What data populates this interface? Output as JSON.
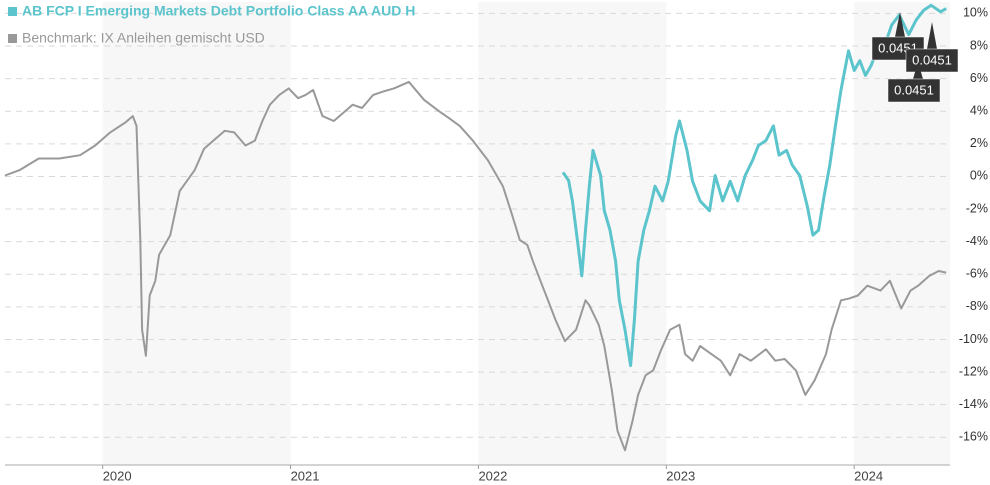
{
  "chart_data": {
    "type": "line",
    "series": [
      {
        "name": "AB FCP I Emerging Markets Debt Portfolio Class AA AUD H",
        "color": "#5bc4cc",
        "x": [
          2022.45,
          2022.48,
          2022.5,
          2022.53,
          2022.55,
          2022.57,
          2022.59,
          2022.61,
          2022.65,
          2022.67,
          2022.7,
          2022.73,
          2022.75,
          2022.78,
          2022.81,
          2022.83,
          2022.85,
          2022.88,
          2022.91,
          2022.94,
          2022.98,
          2023.01,
          2023.05,
          2023.07,
          2023.11,
          2023.14,
          2023.18,
          2023.23,
          2023.26,
          2023.3,
          2023.34,
          2023.38,
          2023.42,
          2023.46,
          2023.49,
          2023.53,
          2023.57,
          2023.6,
          2023.64,
          2023.67,
          2023.71,
          2023.75,
          2023.78,
          2023.81,
          2023.84,
          2023.87,
          2023.9,
          2023.93,
          2023.97,
          2024.0,
          2024.03,
          2024.06,
          2024.09,
          2024.13,
          2024.17,
          2024.2,
          2024.24,
          2024.29,
          2024.33,
          2024.37,
          2024.41,
          2024.46,
          2024.49
        ],
        "values": [
          0.25,
          -0.25,
          -1.5,
          -4.2,
          -6.1,
          -3.3,
          -0.6,
          1.6,
          0.06,
          -2.1,
          -3.3,
          -5.2,
          -7.6,
          -9.4,
          -11.6,
          -8.8,
          -5.2,
          -3.3,
          -2.1,
          -0.6,
          -1.5,
          -0.3,
          2.5,
          3.4,
          1.6,
          -0.3,
          -1.5,
          -2.1,
          0.06,
          -1.5,
          -0.3,
          -1.5,
          0.06,
          1.0,
          1.9,
          2.2,
          3.1,
          1.3,
          1.6,
          0.7,
          0.06,
          -1.8,
          -3.6,
          -3.3,
          -1.2,
          0.7,
          3.1,
          5.3,
          7.7,
          6.5,
          7.1,
          6.2,
          6.8,
          8.0,
          8.3,
          9.3,
          9.9,
          8.7,
          9.6,
          10.2,
          10.5,
          10.1,
          10.3
        ]
      },
      {
        "name": "Benchmark: IX Anleihen gemischt USD",
        "color": "#999999",
        "x": [
          2019.48,
          2019.56,
          2019.66,
          2019.77,
          2019.88,
          2019.96,
          2020.04,
          2020.12,
          2020.16,
          2020.18,
          2020.2,
          2020.21,
          2020.23,
          2020.25,
          2020.28,
          2020.3,
          2020.36,
          2020.41,
          2020.49,
          2020.54,
          2020.6,
          2020.65,
          2020.7,
          2020.76,
          2020.81,
          2020.85,
          2020.89,
          2020.94,
          2020.99,
          2021.04,
          2021.08,
          2021.12,
          2021.17,
          2021.23,
          2021.28,
          2021.33,
          2021.38,
          2021.44,
          2021.49,
          2021.55,
          2021.63,
          2021.71,
          2021.79,
          2021.84,
          2021.9,
          2021.97,
          2022.05,
          2022.13,
          2022.18,
          2022.22,
          2022.26,
          2022.29,
          2022.34,
          2022.37,
          2022.41,
          2022.46,
          2022.52,
          2022.57,
          2022.59,
          2022.64,
          2022.67,
          2022.71,
          2022.74,
          2022.78,
          2022.82,
          2022.85,
          2022.89,
          2022.93,
          2022.97,
          2023.02,
          2023.07,
          2023.1,
          2023.14,
          2023.18,
          2023.24,
          2023.29,
          2023.34,
          2023.39,
          2023.45,
          2023.53,
          2023.58,
          2023.63,
          2023.69,
          2023.74,
          2023.79,
          2023.85,
          2023.88,
          2023.93,
          2023.97,
          2024.02,
          2024.07,
          2024.14,
          2024.19,
          2024.25,
          2024.3,
          2024.34,
          2024.4,
          2024.45,
          2024.49
        ],
        "values": [
          0.06,
          0.4,
          1.1,
          1.1,
          1.3,
          1.9,
          2.7,
          3.3,
          3.7,
          3.1,
          -3.9,
          -9.4,
          -11.0,
          -7.3,
          -6.4,
          -4.8,
          -3.6,
          -0.9,
          0.4,
          1.7,
          2.3,
          2.8,
          2.7,
          1.9,
          2.2,
          3.4,
          4.4,
          5.0,
          5.4,
          4.8,
          5.0,
          5.3,
          3.7,
          3.4,
          3.9,
          4.4,
          4.2,
          5.0,
          5.2,
          5.4,
          5.8,
          4.7,
          4.0,
          3.6,
          3.1,
          2.2,
          1.0,
          -0.6,
          -2.4,
          -3.9,
          -4.2,
          -5.2,
          -6.7,
          -7.6,
          -8.8,
          -10.1,
          -9.4,
          -7.6,
          -7.9,
          -9.1,
          -10.4,
          -13.1,
          -15.6,
          -16.8,
          -15.0,
          -13.4,
          -12.2,
          -11.9,
          -10.7,
          -9.4,
          -9.1,
          -10.9,
          -11.3,
          -10.4,
          -10.9,
          -11.3,
          -12.2,
          -10.9,
          -11.3,
          -10.6,
          -11.3,
          -11.2,
          -11.9,
          -13.4,
          -12.5,
          -10.9,
          -9.4,
          -7.6,
          -7.5,
          -7.3,
          -6.7,
          -7.0,
          -6.4,
          -8.1,
          -7.0,
          -6.7,
          -6.1,
          -5.8,
          -5.9
        ]
      }
    ],
    "xlim": [
      2019.48,
      2024.51
    ],
    "xticks": [
      2020,
      2021,
      2022,
      2023,
      2024
    ],
    "ylim": [
      -17.7,
      10.7
    ],
    "yticks": [
      {
        "value": 10,
        "label": "10%"
      },
      {
        "value": 8,
        "label": "8%"
      },
      {
        "value": 6,
        "label": "6%"
      },
      {
        "value": 4,
        "label": "4%"
      },
      {
        "value": 2,
        "label": "2%"
      },
      {
        "value": 0,
        "label": "0%"
      },
      {
        "value": -2,
        "label": "-2%"
      },
      {
        "value": -4,
        "label": "-4%"
      },
      {
        "value": -6,
        "label": "-6%"
      },
      {
        "value": -8,
        "label": "-8%"
      },
      {
        "value": -10,
        "label": "-10%"
      },
      {
        "value": -12,
        "label": "-12%"
      },
      {
        "value": -14,
        "label": "-14%"
      },
      {
        "value": -16,
        "label": "-16%"
      }
    ],
    "grid": true,
    "annotations": [
      "0.0451",
      "0.0451",
      "0.0451"
    ]
  }
}
